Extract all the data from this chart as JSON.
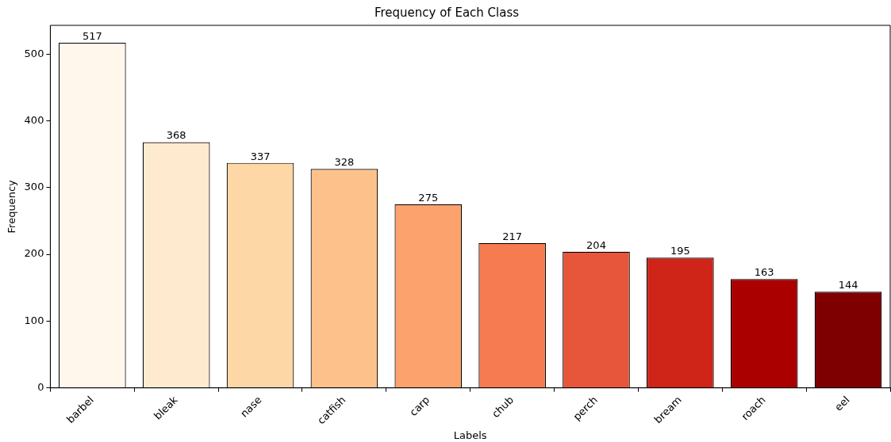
{
  "chart_data": {
    "type": "bar",
    "title": "Frequency of Each Class",
    "xlabel": "Labels",
    "ylabel": "Frequency",
    "categories": [
      "barbel",
      "bleak",
      "nase",
      "catfish",
      "carp",
      "chub",
      "perch",
      "bream",
      "roach",
      "eel"
    ],
    "values": [
      517,
      368,
      337,
      328,
      275,
      217,
      204,
      195,
      163,
      144
    ],
    "colors": [
      "#fff7ec",
      "#feebcf",
      "#fdd7a5",
      "#fdc28c",
      "#fca26d",
      "#f67b51",
      "#e7553b",
      "#cf2418",
      "#ab0000",
      "#7f0000"
    ],
    "ylim": [
      0,
      543
    ],
    "yticks": [
      0,
      100,
      200,
      300,
      400,
      500
    ],
    "grid": false,
    "legend": false,
    "data_labels": true
  }
}
